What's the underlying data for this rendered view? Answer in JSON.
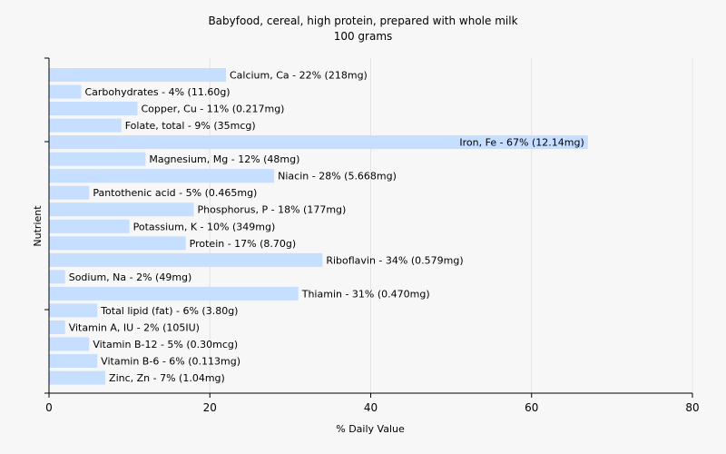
{
  "chart_data": {
    "type": "bar",
    "orientation": "horizontal",
    "title": "Babyfood, cereal, high protein, prepared with whole milk",
    "subtitle": "100 grams",
    "xlabel": "% Daily Value",
    "ylabel": "Nutrient",
    "xlim": [
      0,
      80
    ],
    "xticks": [
      "0",
      "20",
      "40",
      "60",
      "80"
    ],
    "grid": "vertical",
    "bar_color": "#c6deff",
    "categories": [
      "Calcium, Ca",
      "Carbohydrates",
      "Copper, Cu",
      "Folate, total",
      "Iron, Fe",
      "Magnesium, Mg",
      "Niacin",
      "Pantothenic acid",
      "Phosphorus, P",
      "Potassium, K",
      "Protein",
      "Riboflavin",
      "Sodium, Na",
      "Thiamin",
      "Total lipid (fat)",
      "Vitamin A, IU",
      "Vitamin B-12",
      "Vitamin B-6",
      "Zinc, Zn"
    ],
    "values": [
      22,
      4,
      11,
      9,
      67,
      12,
      28,
      5,
      18,
      10,
      17,
      34,
      2,
      31,
      6,
      2,
      5,
      6,
      7
    ],
    "labels": [
      "Calcium, Ca - 22% (218mg)",
      "Carbohydrates - 4% (11.60g)",
      "Copper, Cu - 11% (0.217mg)",
      "Folate, total - 9% (35mcg)",
      "Iron, Fe - 67% (12.14mg)",
      "Magnesium, Mg - 12% (48mg)",
      "Niacin - 28% (5.668mg)",
      "Pantothenic acid - 5% (0.465mg)",
      "Phosphorus, P - 18% (177mg)",
      "Potassium, K - 10% (349mg)",
      "Protein - 17% (8.70g)",
      "Riboflavin - 34% (0.579mg)",
      "Sodium, Na - 2% (49mg)",
      "Thiamin - 31% (0.470mg)",
      "Total lipid (fat) - 6% (3.80g)",
      "Vitamin A, IU - 2% (105IU)",
      "Vitamin B-12 - 5% (0.30mcg)",
      "Vitamin B-6 - 6% (0.113mg)",
      "Zinc, Zn - 7% (1.04mg)"
    ]
  }
}
